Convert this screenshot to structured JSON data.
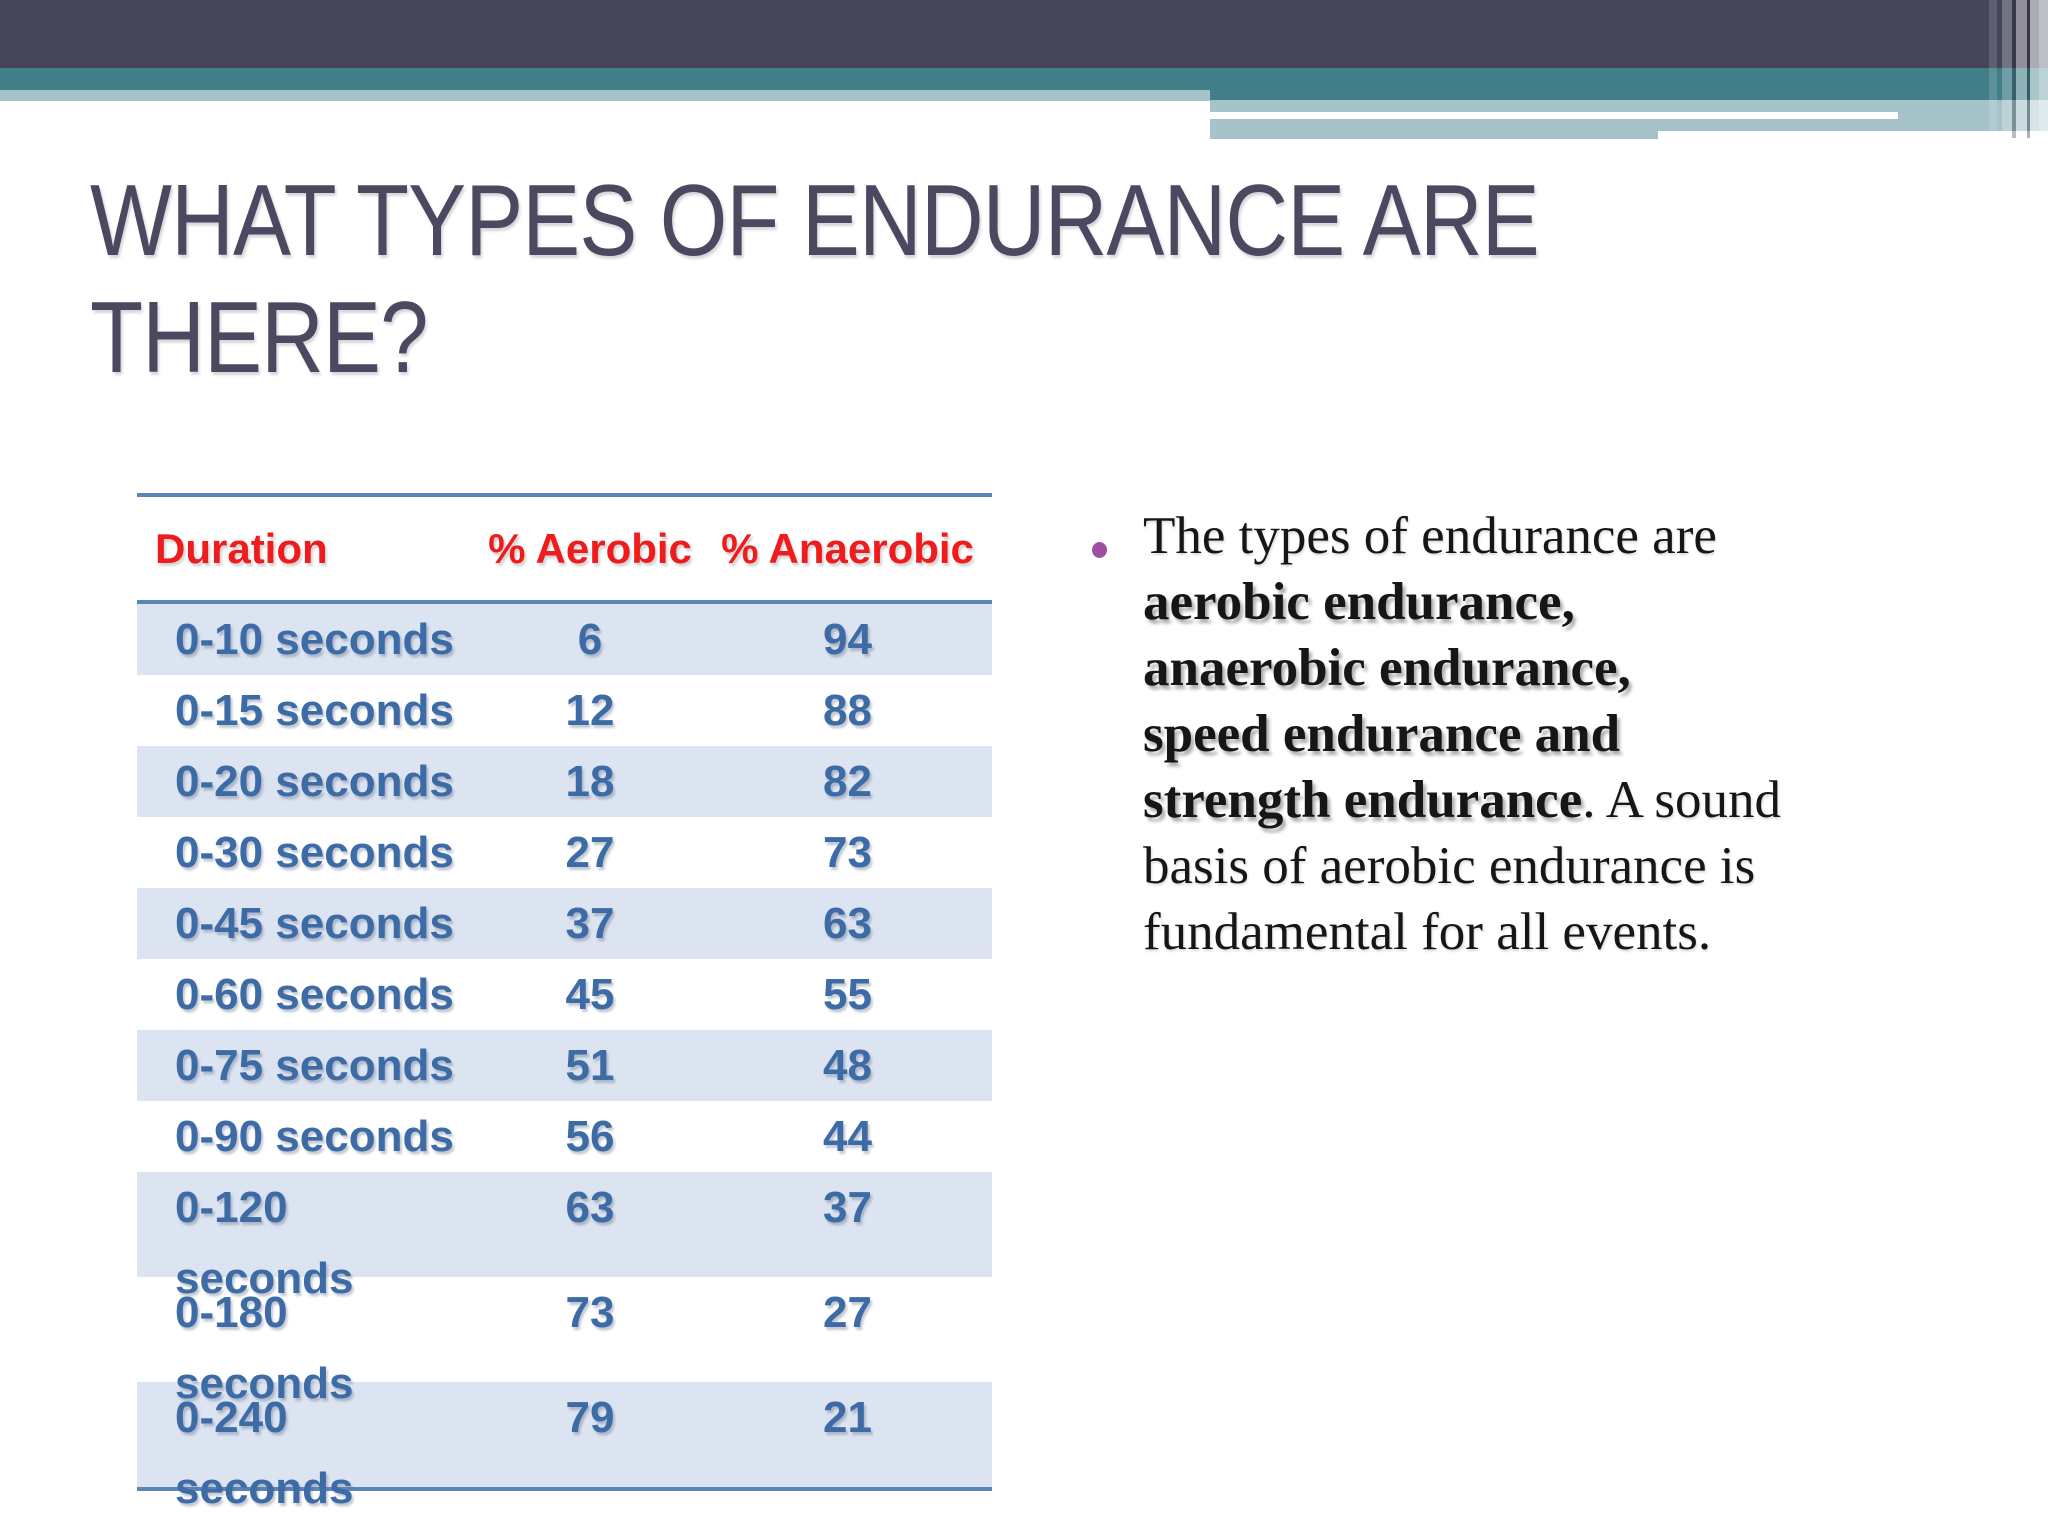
{
  "slide": {
    "title_lines": [
      "WHAT TYPES OF ENDURANCE ARE",
      "THERE?"
    ],
    "table": {
      "headers": [
        "Duration",
        "% Aerobic",
        "% Anaerobic"
      ],
      "rows": [
        [
          "0-10 seconds",
          "6",
          "94"
        ],
        [
          "0-15 seconds",
          "12",
          "88"
        ],
        [
          "0-20 seconds",
          "18",
          "82"
        ],
        [
          "0-30 seconds",
          "27",
          "73"
        ],
        [
          "0-45 seconds",
          "37",
          "63"
        ],
        [
          "0-60 seconds",
          "45",
          "55"
        ],
        [
          "0-75 seconds",
          "51",
          "48"
        ],
        [
          "0-90 seconds",
          "56",
          "44"
        ],
        [
          "0-120 seconds",
          "63",
          "37"
        ],
        [
          "0-180 seconds",
          "73",
          "27"
        ],
        [
          "0-240 seconds",
          "79",
          "21"
        ]
      ]
    },
    "bullet_lines": [
      [
        {
          "t": "The types of endurance are",
          "b": false
        }
      ],
      [
        {
          "t": "aerobic endurance,",
          "b": true
        }
      ],
      [
        {
          "t": "anaerobic endurance,",
          "b": true
        }
      ],
      [
        {
          "t": "speed endurance and",
          "b": true
        }
      ],
      [
        {
          "t": "strength endurance",
          "b": true
        },
        {
          "t": ". A sound",
          "b": false
        }
      ],
      [
        {
          "t": "basis of aerobic endurance is",
          "b": false
        }
      ],
      [
        {
          "t": "fundamental for all events.",
          "b": false
        }
      ]
    ],
    "colors": {
      "darkbar": "#454459",
      "teal": "#417e87",
      "lightteal": "#a6c3c9",
      "title": "#4a4960",
      "red": "#ee1c1d",
      "blue": "#3c6ba5",
      "border": "#5c86b8",
      "rowlight": "#dce4f1",
      "bullet": "#9d50a2",
      "text": "#161616"
    }
  }
}
